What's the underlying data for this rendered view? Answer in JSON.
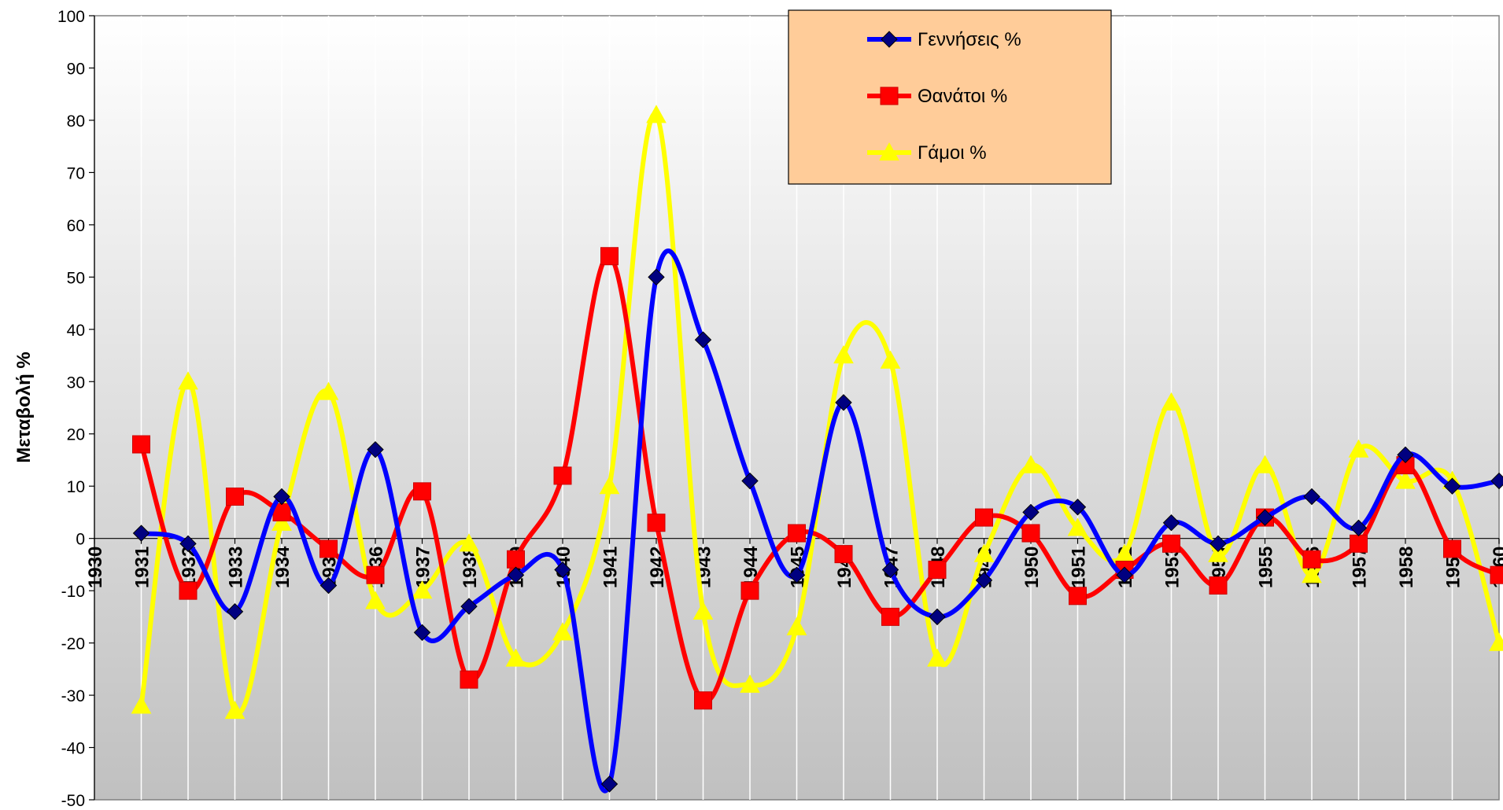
{
  "chart_data": {
    "type": "line",
    "title": "",
    "xlabel": "",
    "ylabel": "Μεταβολή %",
    "ylim": [
      -50,
      100
    ],
    "yticks": [
      100,
      90,
      80,
      70,
      60,
      50,
      40,
      30,
      20,
      10,
      0,
      -10,
      -20,
      -30,
      -40,
      -50
    ],
    "xlim": [
      1930,
      1960
    ],
    "xticks": [
      1930,
      1931,
      1932,
      1933,
      1934,
      1935,
      1936,
      1937,
      1938,
      1939,
      1940,
      1941,
      1942,
      1943,
      1944,
      1945,
      1946,
      1947,
      1948,
      1949,
      1950,
      1951,
      1952,
      1953,
      1954,
      1955,
      1956,
      1957,
      1958,
      1959,
      1960
    ],
    "grid": "vertical",
    "legend_position": "top-center",
    "series": [
      {
        "name": "Γεννήσεις %",
        "color": "#0000ff",
        "marker": "diamond",
        "x": [
          1931,
          1932,
          1933,
          1934,
          1935,
          1936,
          1937,
          1938,
          1939,
          1940,
          1941,
          1942,
          1943,
          1944,
          1945,
          1946,
          1947,
          1948,
          1949,
          1950,
          1951,
          1952,
          1953,
          1954,
          1955,
          1956,
          1957,
          1958,
          1959,
          1960
        ],
        "values": [
          1,
          -1,
          -14,
          8,
          -9,
          17,
          -18,
          -13,
          -7,
          -6,
          -47,
          50,
          38,
          11,
          -7,
          26,
          -6,
          -15,
          -8,
          5,
          6,
          -7,
          3,
          -1,
          4,
          8,
          2,
          16,
          10,
          11
        ]
      },
      {
        "name": "Θανάτοι %",
        "color": "#ff0000",
        "marker": "square",
        "x": [
          1931,
          1932,
          1933,
          1934,
          1935,
          1936,
          1937,
          1938,
          1939,
          1940,
          1941,
          1942,
          1943,
          1944,
          1945,
          1946,
          1947,
          1948,
          1949,
          1950,
          1951,
          1952,
          1953,
          1954,
          1955,
          1956,
          1957,
          1958,
          1959,
          1960
        ],
        "values": [
          18,
          -10,
          8,
          5,
          -2,
          -7,
          9,
          -27,
          -4,
          12,
          54,
          3,
          -31,
          -10,
          1,
          -3,
          -15,
          -6,
          4,
          1,
          -11,
          -6,
          -1,
          -9,
          4,
          -4,
          -1,
          14,
          -2,
          -7
        ]
      },
      {
        "name": "Γάμοι %",
        "color": "#ffff00",
        "marker": "triangle",
        "x": [
          1931,
          1932,
          1933,
          1934,
          1935,
          1936,
          1937,
          1938,
          1939,
          1940,
          1941,
          1942,
          1943,
          1944,
          1945,
          1946,
          1947,
          1948,
          1949,
          1950,
          1951,
          1952,
          1953,
          1954,
          1955,
          1956,
          1957,
          1958,
          1959,
          1960
        ],
        "values": [
          -32,
          30,
          -33,
          3,
          28,
          -12,
          -10,
          -1,
          -23,
          -18,
          10,
          81,
          -14,
          -28,
          -17,
          35,
          34,
          -23,
          -3,
          14,
          2,
          -3,
          26,
          -3,
          14,
          -7,
          17,
          11,
          11,
          -20
        ]
      }
    ]
  },
  "style": {
    "background_top": "#ffffff",
    "background_bottom": "#c0c0c0",
    "legend_bg": "#ffcc99",
    "grid_color": "#ffffff"
  }
}
